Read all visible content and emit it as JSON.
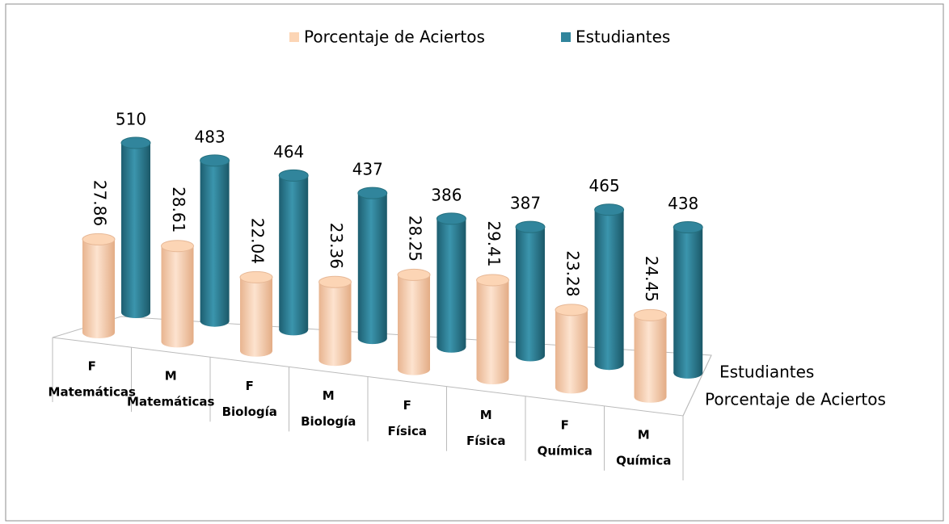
{
  "chart_data": {
    "type": "bar3d",
    "categories": [
      [
        "F",
        "Matemáticas"
      ],
      [
        "M",
        "Matemáticas"
      ],
      [
        "F",
        "Biología"
      ],
      [
        "M",
        "Biología"
      ],
      [
        "F",
        "Física"
      ],
      [
        "M",
        "Física"
      ],
      [
        "F",
        "Química"
      ],
      [
        "M",
        "Química"
      ]
    ],
    "series": [
      {
        "name": "Porcentaje de Aciertos",
        "color": "#fcd5b5",
        "values": [
          27.86,
          28.61,
          22.04,
          23.36,
          28.25,
          29.41,
          23.28,
          24.45
        ]
      },
      {
        "name": "Estudiantes",
        "color": "#31859c",
        "values": [
          510,
          483,
          464,
          437,
          386,
          387,
          465,
          438
        ]
      }
    ],
    "legend": "top"
  }
}
